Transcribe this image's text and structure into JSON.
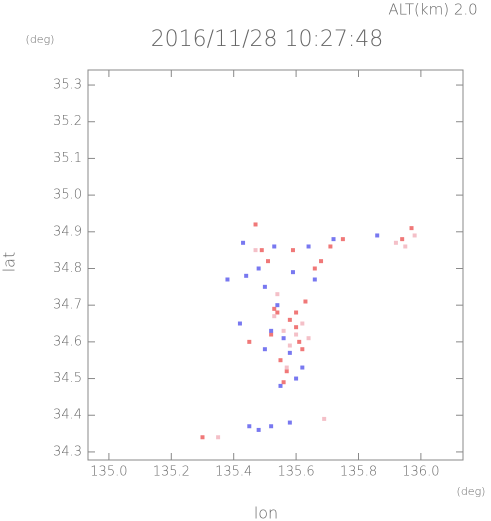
{
  "chart_data": {
    "type": "scatter",
    "title": "2016/11/28 10:27:48",
    "subtitle": "ALT(km) 2.0",
    "y_unit": "(deg)",
    "x_unit": "(deg)",
    "xlabel": "lon",
    "ylabel": "lat",
    "xlim": [
      134.933,
      136.135
    ],
    "ylim": [
      34.278,
      35.341
    ],
    "xticks": [
      {
        "value": 135,
        "label": "135.0"
      },
      135.2,
      135.4,
      135.6,
      135.8,
      {
        "value": 136,
        "label": "136.0"
      }
    ],
    "yticks": [
      34.3,
      34.4,
      34.5,
      34.6,
      34.7,
      34.8,
      34.9,
      {
        "value": 35,
        "label": "35.0"
      },
      35.1,
      35.2,
      35.3
    ],
    "series": [
      {
        "color": "#f07878",
        "x": [
          135.47,
          135.52,
          135.58,
          135.62,
          135.55,
          135.6,
          135.53,
          135.57,
          135.63,
          135.49,
          135.71,
          135.68,
          135.94,
          135.97,
          135.45,
          135.51,
          135.59,
          135.61,
          135.3,
          135.66,
          135.75,
          135.56,
          135.54,
          135.6
        ],
        "values": [
          34.92,
          34.62,
          34.66,
          34.58,
          34.55,
          34.64,
          34.69,
          34.52,
          34.71,
          34.85,
          34.86,
          34.82,
          34.88,
          34.91,
          34.6,
          34.82,
          34.85,
          34.6,
          34.34,
          34.8,
          34.88,
          34.49,
          34.68,
          34.68
        ]
      },
      {
        "color": "#7878f0",
        "x": [
          135.43,
          135.48,
          135.52,
          135.56,
          135.58,
          135.62,
          135.54,
          135.5,
          135.59,
          135.55,
          135.66,
          135.64,
          135.72,
          135.86,
          135.42,
          135.45,
          135.48,
          135.52,
          135.44,
          135.38,
          135.58,
          135.6,
          135.5,
          135.53
        ],
        "values": [
          34.87,
          34.8,
          34.63,
          34.61,
          34.57,
          34.53,
          34.7,
          34.75,
          34.79,
          34.48,
          34.77,
          34.86,
          34.88,
          34.89,
          34.65,
          34.37,
          34.36,
          34.37,
          34.78,
          34.77,
          34.38,
          34.5,
          34.58,
          34.86
        ]
      },
      {
        "color": "#f4c0c8",
        "x": [
          135.92,
          135.95,
          135.98,
          135.56,
          135.6,
          135.53,
          135.58,
          135.62,
          135.47,
          135.64,
          135.35,
          135.69,
          135.54,
          135.57
        ],
        "values": [
          34.87,
          34.86,
          34.89,
          34.63,
          34.62,
          34.67,
          34.59,
          34.65,
          34.85,
          34.61,
          34.34,
          34.39,
          34.73,
          34.53
        ]
      }
    ]
  }
}
